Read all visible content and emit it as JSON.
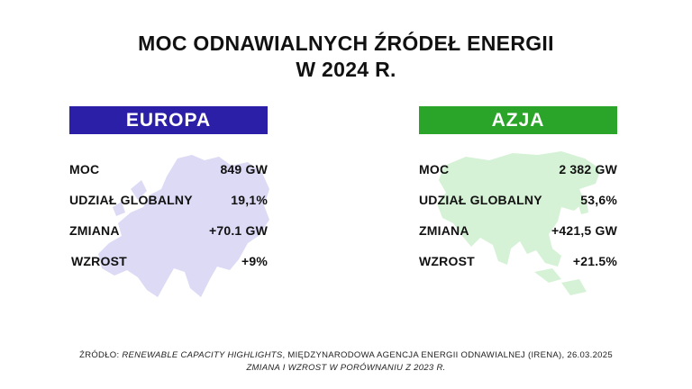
{
  "title": {
    "line1": "MOC ODNAWIALNYCH ŹRÓDEŁ ENERGII",
    "line2": "W 2024 R."
  },
  "panels": [
    {
      "header": "EUROPA",
      "color": "#2b1fa8",
      "map_color": "#dcdaf4",
      "rows": [
        {
          "label": "MOC",
          "value": "849 GW"
        },
        {
          "label": "UDZIAŁ GLOBALNY",
          "value": "19,1%"
        },
        {
          "label": "ZMIANA",
          "value": "+70.1 GW"
        },
        {
          "label": "WZROST",
          "value": "+9%"
        }
      ]
    },
    {
      "header": "AZJA",
      "color": "#2aa52a",
      "map_color": "#d6f2d6",
      "rows": [
        {
          "label": "MOC",
          "value": "2 382 GW"
        },
        {
          "label": "UDZIAŁ GLOBALNY",
          "value": "53,6%"
        },
        {
          "label": "ZMIANA",
          "value": "+421,5 GW"
        },
        {
          "label": "WZROST",
          "value": "+21.5%"
        }
      ]
    }
  ],
  "source": {
    "prefix": "ŹRÓDŁO: ",
    "title": "RENEWABLE CAPACITY HIGHLIGHTS",
    "rest": ", MIĘDZYNARODOWA AGENCJA ENERGII ODNAWIALNEJ (IRENA), 26.03.2025",
    "line2": "ZMIANA I WZROST W PORÓWNANIU Z 2023 R."
  }
}
